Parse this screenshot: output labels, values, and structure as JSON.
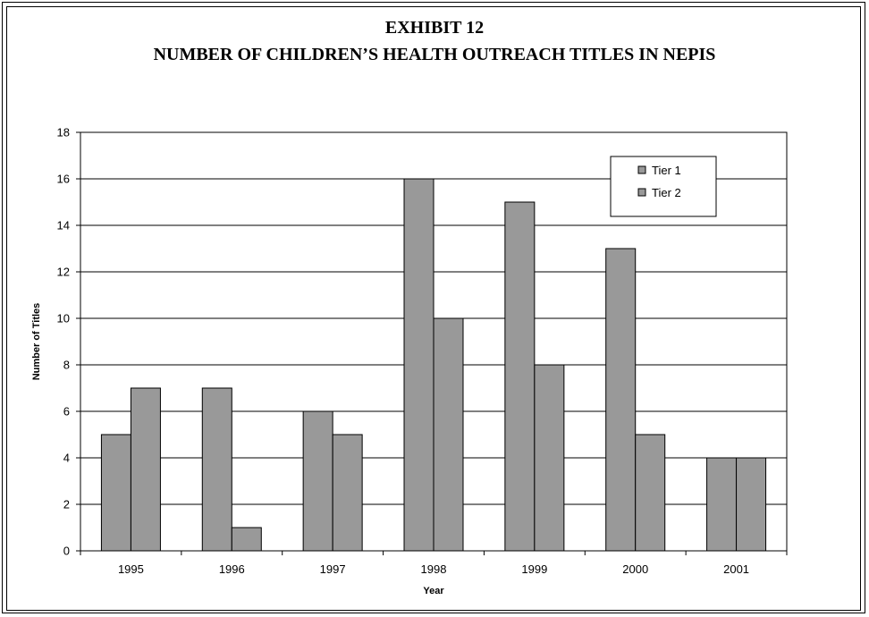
{
  "title_line1": "EXHIBIT 12",
  "title_line2": "NUMBER OF CHILDREN’S HEALTH OUTREACH TITLES IN NEPIS",
  "colors": {
    "bar_fill": "#999999",
    "bar_stroke": "#000000",
    "grid": "#000000"
  },
  "chart_data": {
    "type": "bar",
    "categories": [
      "1995",
      "1996",
      "1997",
      "1998",
      "1999",
      "2000",
      "2001"
    ],
    "series": [
      {
        "name": "Tier 1",
        "values": [
          5,
          7,
          6,
          16,
          15,
          13,
          4
        ]
      },
      {
        "name": "Tier 2",
        "values": [
          7,
          1,
          5,
          10,
          8,
          5,
          4
        ]
      }
    ],
    "xlabel": "Year",
    "ylabel": "Number of Titles",
    "ylim": [
      0,
      18
    ],
    "yticks": [
      0,
      2,
      4,
      6,
      8,
      10,
      12,
      14,
      16,
      18
    ],
    "grid": true,
    "legend_position": "top-right"
  }
}
